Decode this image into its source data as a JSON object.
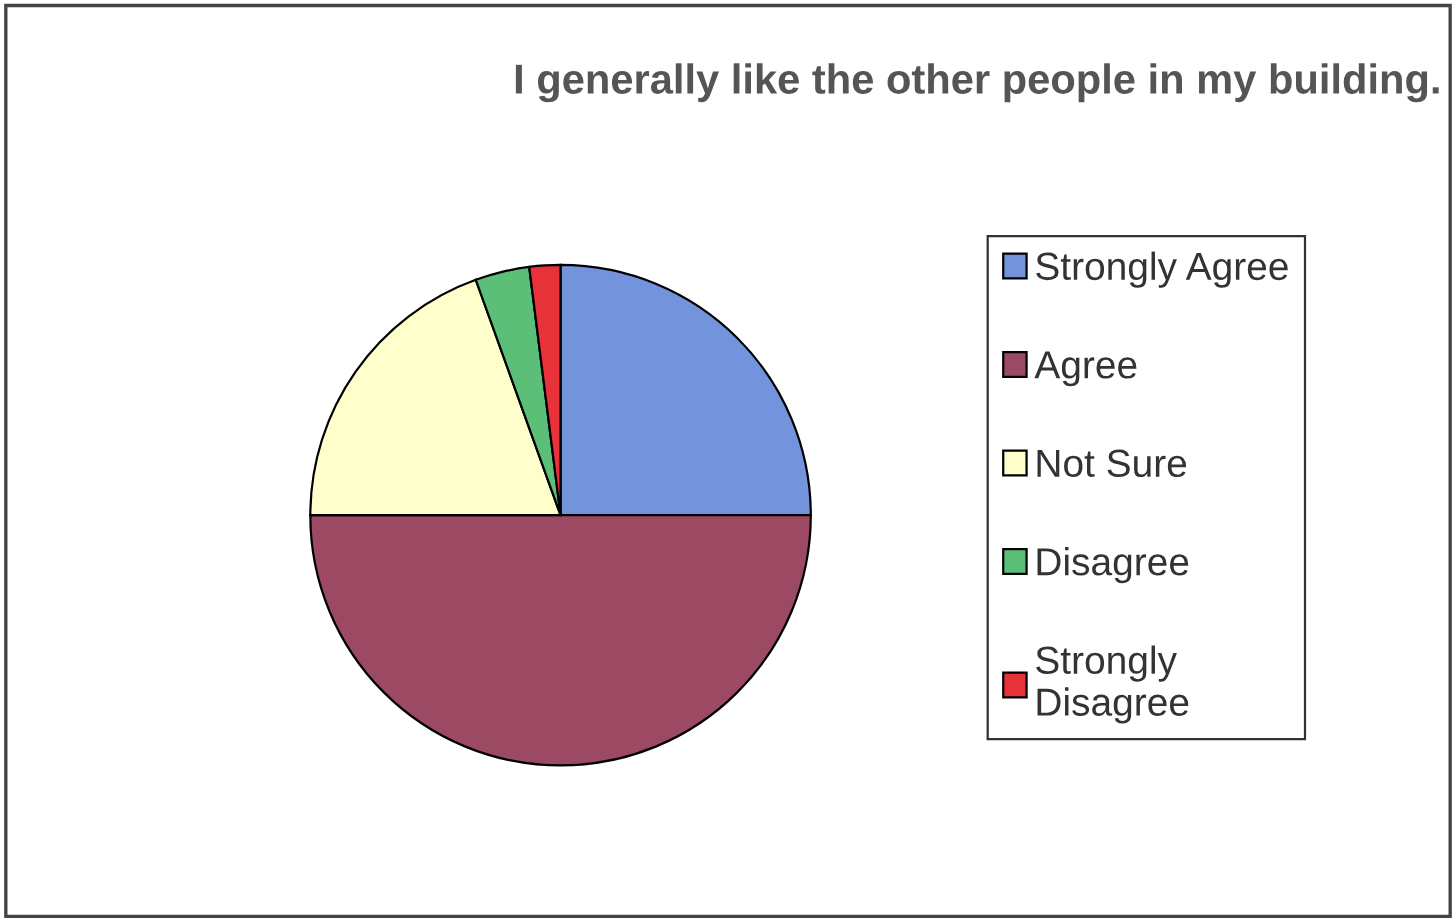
{
  "chart_data": {
    "type": "pie",
    "title": "I generally like the other people in my building.",
    "categories": [
      "Strongly Agree",
      "Agree",
      "Not Sure",
      "Disagree",
      "Strongly Disagree"
    ],
    "values": [
      25,
      50,
      19.5,
      3.5,
      2
    ],
    "colors": [
      "#7394dc",
      "#9c4a63",
      "#ffffcc",
      "#5cbf78",
      "#e8323a"
    ],
    "legend": "right"
  }
}
